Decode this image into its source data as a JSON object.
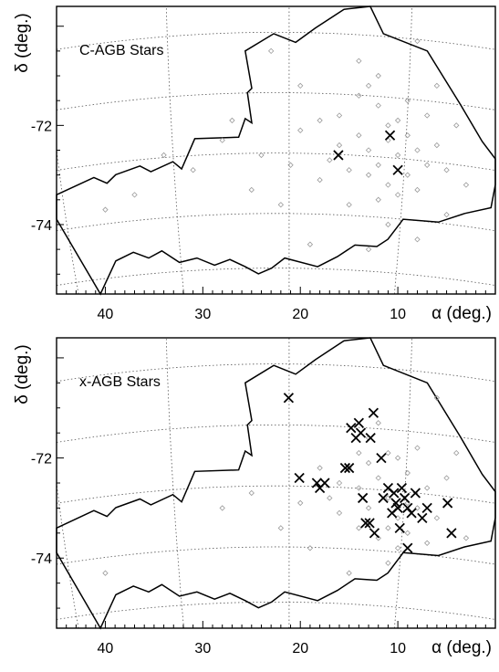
{
  "chart_data": [
    {
      "type": "scatter",
      "title": "C-AGB Stars",
      "xlabel": "α (deg.)",
      "ylabel": "δ (deg.)",
      "xlim": [
        45,
        0
      ],
      "ylim": [
        -75.4,
        -69.6
      ],
      "x_ticks": [
        40,
        30,
        20,
        10
      ],
      "y_ticks": [
        -72,
        -74
      ],
      "grid": "dotted",
      "series": [
        {
          "marker": "diamond",
          "color": "#9a9a9a",
          "points": [
            [
              23,
              -70.5
            ],
            [
              20,
              -71.2
            ],
            [
              28,
              -72.3
            ],
            [
              34,
              -72.6
            ],
            [
              31,
              -72.9
            ],
            [
              18,
              -73.1
            ],
            [
              16,
              -71.8
            ],
            [
              14,
              -70.7
            ],
            [
              12,
              -71.0
            ],
            [
              8,
              -70.3
            ],
            [
              6,
              -71.2
            ],
            [
              4,
              -72.0
            ],
            [
              3,
              -73.2
            ],
            [
              5,
              -73.8
            ],
            [
              8,
              -74.3
            ],
            [
              13,
              -74.5
            ],
            [
              19,
              -74.4
            ],
            [
              22,
              -73.6
            ],
            [
              25,
              -73.3
            ],
            [
              37,
              -73.4
            ],
            [
              40,
              -73.7
            ],
            [
              27,
              -71.9
            ],
            [
              11,
              -72.3
            ],
            [
              10,
              -72.6
            ],
            [
              12,
              -72.8
            ],
            [
              9,
              -73.0
            ],
            [
              13,
              -72.5
            ],
            [
              11,
              -73.2
            ],
            [
              14,
              -72.2
            ],
            [
              10,
              -71.9
            ],
            [
              12,
              -71.6
            ],
            [
              8,
              -72.5
            ],
            [
              15,
              -72.9
            ],
            [
              11,
              -72.0
            ],
            [
              13,
              -73.0
            ],
            [
              10,
              -73.4
            ],
            [
              9,
              -72.2
            ],
            [
              16,
              -72.4
            ],
            [
              7,
              -72.8
            ],
            [
              12,
              -73.5
            ],
            [
              14,
              -71.4
            ],
            [
              6,
              -72.4
            ],
            [
              17,
              -72.7
            ],
            [
              9,
              -71.5
            ],
            [
              15,
              -73.6
            ],
            [
              8,
              -73.3
            ],
            [
              11,
              -74.0
            ],
            [
              20,
              -72.1
            ],
            [
              21,
              -72.8
            ],
            [
              24,
              -72.6
            ],
            [
              5,
              -72.9
            ],
            [
              7,
              -71.8
            ],
            [
              18,
              -71.9
            ],
            [
              13,
              -71.2
            ]
          ]
        },
        {
          "marker": "x",
          "color": "#000000",
          "points": [
            [
              16.1,
              -72.6
            ],
            [
              10.8,
              -72.2
            ],
            [
              10.0,
              -72.9
            ]
          ]
        }
      ]
    },
    {
      "type": "scatter",
      "title": "x-AGB Stars",
      "xlabel": "α (deg.)",
      "ylabel": "δ (deg.)",
      "xlim": [
        45,
        0
      ],
      "ylim": [
        -75.4,
        -69.6
      ],
      "x_ticks": [
        40,
        30,
        20,
        10
      ],
      "y_ticks": [
        -72,
        -74
      ],
      "grid": "dotted",
      "series": [
        {
          "marker": "diamond",
          "color": "#9a9a9a",
          "points": [
            [
              12,
              -72.4
            ],
            [
              11,
              -72.8
            ],
            [
              13,
              -73.0
            ],
            [
              10,
              -73.2
            ],
            [
              9,
              -72.3
            ],
            [
              14,
              -72.6
            ],
            [
              8,
              -73.0
            ],
            [
              12,
              -73.6
            ],
            [
              15,
              -72.2
            ],
            [
              11,
              -71.9
            ],
            [
              10,
              -73.8
            ],
            [
              16,
              -73.1
            ],
            [
              7,
              -72.6
            ],
            [
              13,
              -71.6
            ],
            [
              9,
              -73.5
            ],
            [
              17,
              -72.8
            ],
            [
              14,
              -73.4
            ],
            [
              6,
              -73.2
            ],
            [
              18,
              -72.2
            ],
            [
              12,
              -71.3
            ],
            [
              20,
              -72.9
            ],
            [
              8,
              -71.8
            ],
            [
              5,
              -72.4
            ],
            [
              11,
              -74.1
            ],
            [
              22,
              -73.4
            ],
            [
              25,
              -72.7
            ],
            [
              28,
              -73.0
            ],
            [
              40,
              -74.3
            ],
            [
              6,
              -70.8
            ],
            [
              4,
              -71.9
            ],
            [
              3,
              -73.6
            ],
            [
              15,
              -74.3
            ],
            [
              19,
              -73.8
            ],
            [
              10,
              -72.0
            ],
            [
              13,
              -72.1
            ],
            [
              9,
              -72.9
            ],
            [
              11,
              -73.4
            ],
            [
              14,
              -71.9
            ],
            [
              7,
              -73.7
            ],
            [
              16,
              -72.5
            ]
          ]
        },
        {
          "marker": "x",
          "color": "#000000",
          "points": [
            [
              21.2,
              -70.8
            ],
            [
              20.1,
              -72.4
            ],
            [
              18.3,
              -72.5
            ],
            [
              18.0,
              -72.6
            ],
            [
              17.5,
              -72.5
            ],
            [
              15.4,
              -72.2
            ],
            [
              15.0,
              -72.2
            ],
            [
              14.8,
              -71.4
            ],
            [
              14.3,
              -71.6
            ],
            [
              14.0,
              -71.3
            ],
            [
              13.8,
              -71.5
            ],
            [
              12.8,
              -71.6
            ],
            [
              12.5,
              -71.1
            ],
            [
              11.7,
              -72.0
            ],
            [
              13.6,
              -72.8
            ],
            [
              13.3,
              -73.3
            ],
            [
              12.9,
              -73.3
            ],
            [
              12.4,
              -73.5
            ],
            [
              11.5,
              -72.8
            ],
            [
              11.0,
              -72.6
            ],
            [
              10.6,
              -73.1
            ],
            [
              10.2,
              -72.9
            ],
            [
              10.0,
              -73.0
            ],
            [
              9.6,
              -72.6
            ],
            [
              9.3,
              -72.8
            ],
            [
              9.0,
              -73.0
            ],
            [
              8.6,
              -73.1
            ],
            [
              8.2,
              -72.7
            ],
            [
              9.8,
              -73.4
            ],
            [
              10.4,
              -72.7
            ],
            [
              9.0,
              -73.8
            ],
            [
              7.5,
              -73.2
            ],
            [
              7.0,
              -73.0
            ],
            [
              4.9,
              -72.9
            ],
            [
              4.5,
              -73.5
            ]
          ]
        }
      ]
    }
  ]
}
